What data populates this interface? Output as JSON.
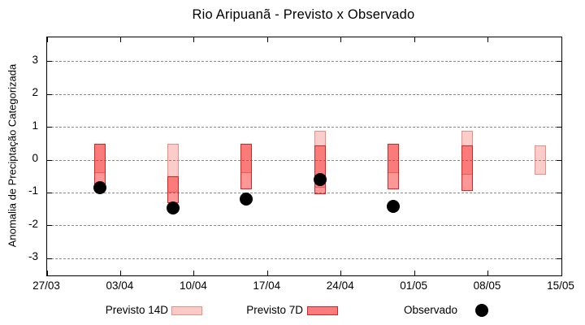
{
  "title": "Rio Aripuanã - Previsto x Observado",
  "y_axis": {
    "label": "Anomalia de Preciptação Categorizada",
    "ticks": [
      3,
      2,
      1,
      0,
      -1,
      -2,
      -3
    ]
  },
  "x_axis": {
    "ticks": [
      {
        "label": "27/03",
        "day": 0
      },
      {
        "label": "03/04",
        "day": 7
      },
      {
        "label": "10/04",
        "day": 14
      },
      {
        "label": "17/04",
        "day": 21
      },
      {
        "label": "24/04",
        "day": 28
      },
      {
        "label": "01/05",
        "day": 35
      },
      {
        "label": "08/05",
        "day": 42
      },
      {
        "label": "15/05",
        "day": 49
      }
    ]
  },
  "legend": {
    "items": [
      {
        "label": "Previsto 14D",
        "symbol": "box-light"
      },
      {
        "label": "Previsto 7D",
        "symbol": "box-red"
      },
      {
        "label": "Observado",
        "symbol": "black-dot"
      }
    ]
  },
  "colors": {
    "previsto_14d_fill": "#facac6",
    "previsto_14d_border": "#f28b80",
    "previsto_7d_fill": "#f97d7d",
    "previsto_7d_border": "#e41f1f",
    "observado": "#000000",
    "gridline": "#8c8c8c",
    "axis": "#000000"
  },
  "chart_data": {
    "type": "range-bar+scatter",
    "title": "Rio Aripuanã - Previsto x Observado",
    "xlabel": "",
    "ylabel": "Anomalia de Preciptação Categorizada",
    "ylim": [
      -3.5,
      3.75
    ],
    "x_start_label": "27/03",
    "x_end_label": "15/05",
    "x_range_days": 49,
    "grid": "horizontal-dashed",
    "legend_position": "bottom",
    "series_names": [
      "Previsto 14D",
      "Previsto 7D",
      "Observado"
    ],
    "bars": [
      {
        "date": "01/04",
        "day": 5,
        "previsto_14d": [
          -0.4,
          0.5
        ],
        "previsto_7d": [
          -0.75,
          0.5
        ],
        "observado": -0.85
      },
      {
        "date": "08/04",
        "day": 12,
        "previsto_14d": [
          -1.0,
          0.5
        ],
        "previsto_7d": [
          -1.3,
          -0.5
        ],
        "observado": -1.45
      },
      {
        "date": "15/04",
        "day": 19,
        "previsto_14d": [
          -0.4,
          0.5
        ],
        "previsto_7d": [
          -0.9,
          0.5
        ],
        "observado": -1.2
      },
      {
        "date": "22/04",
        "day": 26,
        "previsto_14d": [
          -0.85,
          0.9
        ],
        "previsto_7d": [
          -1.05,
          0.45
        ],
        "observado": -0.6
      },
      {
        "date": "29/04",
        "day": 33,
        "previsto_14d": [
          -0.4,
          0.5
        ],
        "previsto_7d": [
          -0.9,
          0.5
        ],
        "observado": -1.4
      },
      {
        "date": "06/05",
        "day": 40,
        "previsto_14d": [
          -0.45,
          0.9
        ],
        "previsto_7d": [
          -0.95,
          0.45
        ],
        "observado": null
      },
      {
        "date": "13/05",
        "day": 47,
        "previsto_14d": [
          -0.45,
          0.45
        ],
        "previsto_7d": null,
        "observado": null
      }
    ]
  }
}
